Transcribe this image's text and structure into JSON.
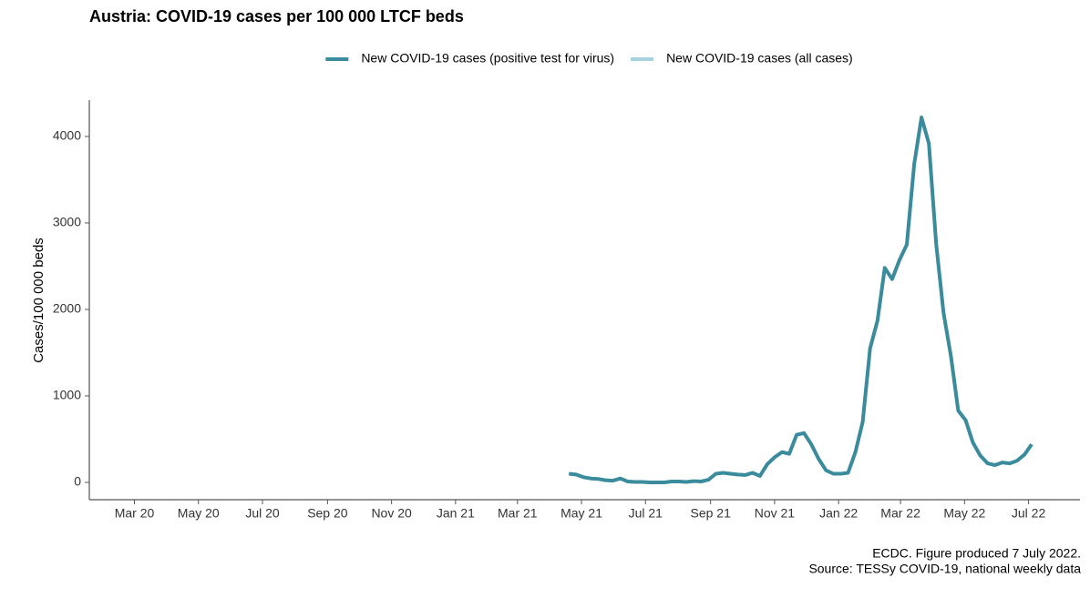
{
  "chart_data": {
    "type": "line",
    "title": "Austria: COVID-19 cases per 100 000 LTCF beds",
    "y_label": "Cases/100 000 beds",
    "caption": [
      "ECDC. Figure produced 7 July 2022.",
      "Source: TESSy COVID-19, national weekly data"
    ],
    "x": [
      "2021-04-19",
      "2021-04-26",
      "2021-05-03",
      "2021-05-10",
      "2021-05-17",
      "2021-05-24",
      "2021-05-31",
      "2021-06-07",
      "2021-06-14",
      "2021-06-21",
      "2021-06-28",
      "2021-07-05",
      "2021-07-12",
      "2021-07-19",
      "2021-07-26",
      "2021-08-02",
      "2021-08-09",
      "2021-08-16",
      "2021-08-23",
      "2021-08-30",
      "2021-09-06",
      "2021-09-13",
      "2021-09-20",
      "2021-09-27",
      "2021-10-04",
      "2021-10-11",
      "2021-10-18",
      "2021-10-25",
      "2021-11-01",
      "2021-11-08",
      "2021-11-15",
      "2021-11-22",
      "2021-11-29",
      "2021-12-06",
      "2021-12-13",
      "2021-12-20",
      "2021-12-27",
      "2022-01-03",
      "2022-01-10",
      "2022-01-17",
      "2022-01-24",
      "2022-01-31",
      "2022-02-07",
      "2022-02-14",
      "2022-02-21",
      "2022-02-28",
      "2022-03-07",
      "2022-03-14",
      "2022-03-21",
      "2022-03-28",
      "2022-04-04",
      "2022-04-11",
      "2022-04-18",
      "2022-04-25",
      "2022-05-02",
      "2022-05-09",
      "2022-05-16",
      "2022-05-23",
      "2022-05-30",
      "2022-06-06",
      "2022-06-13",
      "2022-06-20",
      "2022-06-27",
      "2022-07-04"
    ],
    "series": [
      {
        "name": "New COVID-19 cases (positive test for virus)",
        "color": "#3a8b9c",
        "values": [
          100,
          90,
          60,
          45,
          40,
          25,
          20,
          45,
          10,
          5,
          5,
          0,
          0,
          0,
          10,
          10,
          5,
          15,
          10,
          30,
          100,
          110,
          100,
          90,
          85,
          110,
          75,
          210,
          290,
          350,
          330,
          550,
          570,
          440,
          270,
          140,
          100,
          100,
          110,
          350,
          700,
          1550,
          1870,
          2480,
          2350,
          2570,
          2750,
          3680,
          4220,
          3920,
          2760,
          1960,
          1460,
          830,
          720,
          460,
          310,
          220,
          200,
          230,
          220,
          250,
          320,
          440
        ]
      },
      {
        "name": "New COVID-19 cases (all cases)",
        "color": "#a6d2df",
        "values": [
          null,
          null,
          null,
          null,
          null,
          null,
          null,
          null,
          null,
          null,
          null,
          null,
          null,
          null,
          null,
          null,
          null,
          null,
          null,
          null,
          null,
          null,
          null,
          null,
          null,
          null,
          null,
          null,
          null,
          null,
          null,
          null,
          null,
          null,
          null,
          null,
          null,
          null,
          null,
          null,
          null,
          null,
          null,
          null,
          null,
          null,
          null,
          null,
          null,
          null,
          null,
          null,
          null,
          null,
          null,
          null,
          null,
          null,
          null,
          null,
          null,
          null,
          null,
          null
        ]
      }
    ],
    "xlim": [
      "2020-01-18",
      "2022-08-19"
    ],
    "xticks": [
      {
        "value": "2020-03",
        "label": "Mar 20"
      },
      {
        "value": "2020-05",
        "label": "May 20"
      },
      {
        "value": "2020-07",
        "label": "Jul 20"
      },
      {
        "value": "2020-09",
        "label": "Sep 20"
      },
      {
        "value": "2020-11",
        "label": "Nov 20"
      },
      {
        "value": "2021-01",
        "label": "Jan 21"
      },
      {
        "value": "2021-03",
        "label": "Mar 21"
      },
      {
        "value": "2021-05",
        "label": "May 21"
      },
      {
        "value": "2021-07",
        "label": "Jul 21"
      },
      {
        "value": "2021-09",
        "label": "Sep 21"
      },
      {
        "value": "2021-11",
        "label": "Nov 21"
      },
      {
        "value": "2022-01",
        "label": "Jan 22"
      },
      {
        "value": "2022-03",
        "label": "Mar 22"
      },
      {
        "value": "2022-05",
        "label": "May 22"
      },
      {
        "value": "2022-07",
        "label": "Jul 22"
      }
    ],
    "ylim": [
      -200,
      4420
    ],
    "yticks": [
      0,
      1000,
      2000,
      3000,
      4000
    ],
    "grid": false,
    "legend": "top"
  }
}
